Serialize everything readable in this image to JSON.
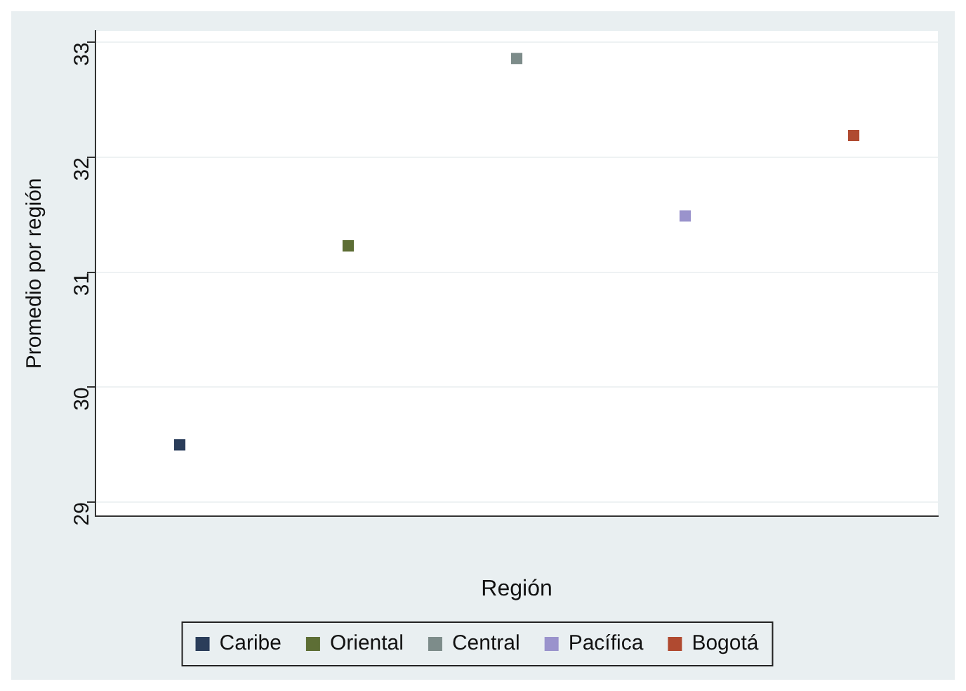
{
  "chart_data": {
    "type": "scatter",
    "xlabel": "Región",
    "ylabel": "Promedio por región",
    "categories": [
      null,
      null,
      null,
      null,
      null
    ],
    "series": [
      {
        "name": "Caribe",
        "color": "#2a3d5a",
        "values": [
          29.5,
          null,
          null,
          null,
          null
        ]
      },
      {
        "name": "Oriental",
        "color": "#5d6e35",
        "values": [
          null,
          31.23,
          null,
          null,
          null
        ]
      },
      {
        "name": "Central",
        "color": "#7d8c8a",
        "values": [
          null,
          null,
          32.86,
          null,
          null
        ]
      },
      {
        "name": "Pacífica",
        "color": "#9a93cc",
        "values": [
          null,
          null,
          null,
          31.49,
          null
        ]
      },
      {
        "name": "Bogotá",
        "color": "#b04a30",
        "values": [
          null,
          null,
          null,
          null,
          32.19
        ]
      }
    ],
    "ylim": [
      28.88,
      33.1
    ],
    "yticks": [
      29,
      30,
      31,
      32,
      33
    ],
    "grid": "y",
    "legend": "bottom",
    "marker": "square"
  }
}
